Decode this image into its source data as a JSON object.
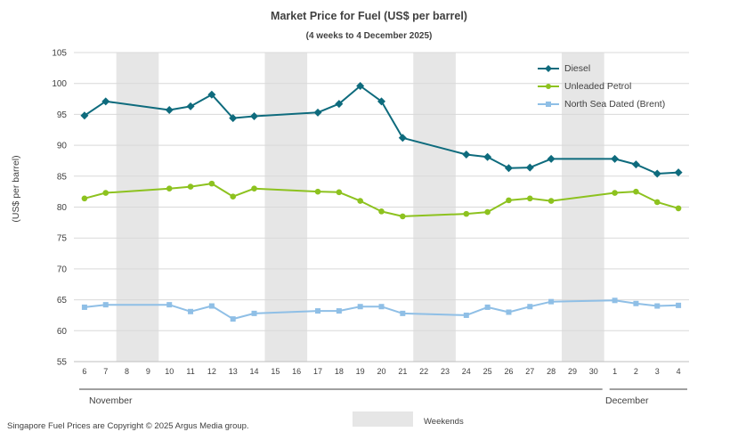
{
  "chart_data": {
    "type": "line",
    "title": "Market Price for Fuel (US$ per barrel)",
    "subtitle": "(4 weeks to 4 December 2025)",
    "ylabel": "(US$ per barrel)",
    "ylim": [
      55,
      105
    ],
    "yticks": [
      55,
      60,
      65,
      70,
      75,
      80,
      85,
      90,
      95,
      100,
      105
    ],
    "categories": [
      "6",
      "7",
      "8",
      "9",
      "10",
      "11",
      "12",
      "13",
      "14",
      "15",
      "16",
      "17",
      "18",
      "19",
      "20",
      "21",
      "22",
      "23",
      "24",
      "25",
      "26",
      "27",
      "28",
      "29",
      "30",
      "1",
      "2",
      "3",
      "4"
    ],
    "weekends": [
      [
        "8",
        "9"
      ],
      [
        "15",
        "16"
      ],
      [
        "22",
        "23"
      ],
      [
        "29",
        "30"
      ]
    ],
    "month_labels": [
      {
        "label": "November",
        "from": "6",
        "to": "30"
      },
      {
        "label": "December",
        "from": "1",
        "to": "4"
      }
    ],
    "series": [
      {
        "name": "Diesel",
        "color": "#0e6b7d",
        "marker": "diamond",
        "values": [
          94.8,
          97.1,
          null,
          null,
          95.7,
          96.3,
          98.2,
          94.4,
          94.7,
          null,
          null,
          95.3,
          96.7,
          99.6,
          97.1,
          91.2,
          null,
          null,
          88.5,
          88.1,
          86.3,
          86.4,
          87.8,
          null,
          null,
          87.8,
          86.9,
          85.4,
          85.6
        ]
      },
      {
        "name": "Unleaded Petrol",
        "color": "#8dc21f",
        "marker": "circle",
        "values": [
          81.4,
          82.3,
          null,
          null,
          83.0,
          83.3,
          83.8,
          81.7,
          83.0,
          null,
          null,
          82.5,
          82.4,
          81.0,
          79.3,
          78.5,
          null,
          null,
          78.9,
          79.2,
          81.1,
          81.4,
          81.0,
          null,
          null,
          82.3,
          82.5,
          80.8,
          79.8
        ]
      },
      {
        "name": "North Sea Dated (Brent)",
        "color": "#8fbfe6",
        "marker": "square",
        "values": [
          63.8,
          64.2,
          null,
          null,
          64.2,
          63.1,
          64.0,
          61.9,
          62.8,
          null,
          null,
          63.2,
          63.2,
          63.9,
          63.9,
          62.8,
          null,
          null,
          62.5,
          63.8,
          63.0,
          63.9,
          64.7,
          null,
          null,
          64.9,
          64.4,
          64.0,
          64.1
        ]
      }
    ],
    "legend_position": "top-right",
    "weekends_label": "Weekends"
  },
  "footer": "Singapore Fuel Prices are Copyright © 2025 Argus Media group."
}
